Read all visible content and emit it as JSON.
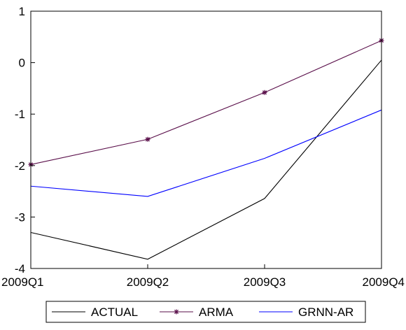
{
  "chart_data": {
    "type": "line",
    "categories": [
      "2009Q1",
      "2009Q2",
      "2009Q3",
      "2009Q4"
    ],
    "ylim": [
      -4,
      1
    ],
    "yticks": [
      -4,
      -3,
      -2,
      -1,
      0,
      1
    ],
    "ytick_labels": [
      "-4",
      "-3",
      "-2",
      "-1",
      "0",
      "1"
    ],
    "grid": false,
    "legend_position": "bottom-center",
    "series": [
      {
        "name": "ACTUAL",
        "values": [
          -3.3,
          -3.82,
          -2.64,
          0.05
        ],
        "color": "#000000",
        "marker": "none"
      },
      {
        "name": "ARMA",
        "values": [
          -1.98,
          -1.49,
          -0.58,
          0.43
        ],
        "color": "#5a0f4a",
        "marker": "asterisk"
      },
      {
        "name": "GRNN-AR",
        "values": [
          -2.4,
          -2.6,
          -1.86,
          -0.92
        ],
        "color": "#0000ff",
        "marker": "none"
      }
    ]
  }
}
